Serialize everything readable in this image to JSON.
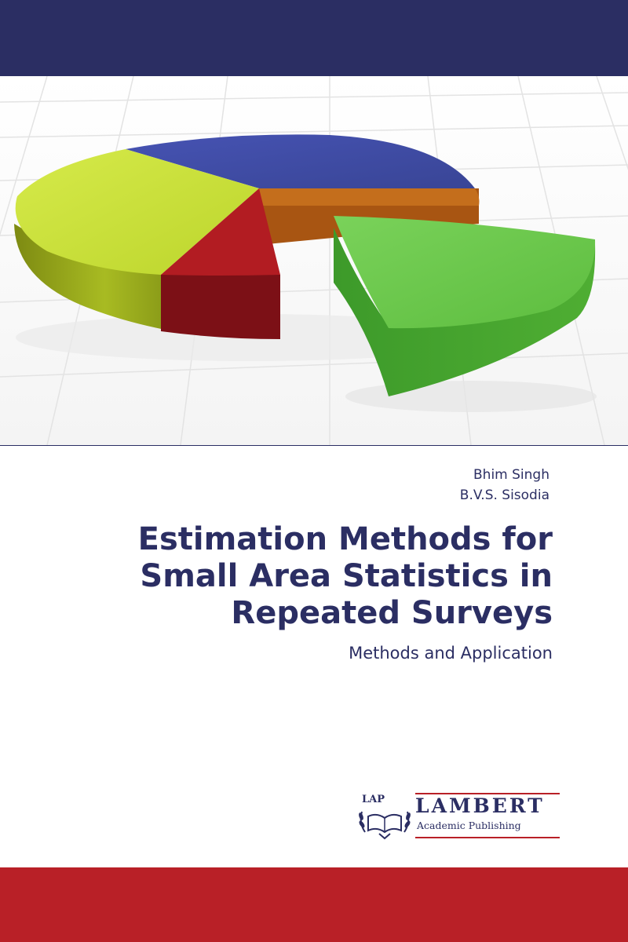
{
  "book": {
    "authors": [
      "Bhim Singh",
      "B.V.S. Sisodia"
    ],
    "title_lines": [
      "Estimation Methods for",
      "Small Area Statistics in",
      "Repeated Surveys"
    ],
    "subtitle": "Methods and Application"
  },
  "publisher": {
    "emblem": "LAP",
    "name": "LAMBERT",
    "imprint": "Academic Publishing"
  },
  "colors": {
    "navy": "#2b2e63",
    "red": "#b92027",
    "pie_blue": "#3e4aa6",
    "pie_orange": "#c06a1a",
    "pie_green": "#6bc44a",
    "pie_red": "#b21c22",
    "pie_yellow": "#cbe338"
  }
}
